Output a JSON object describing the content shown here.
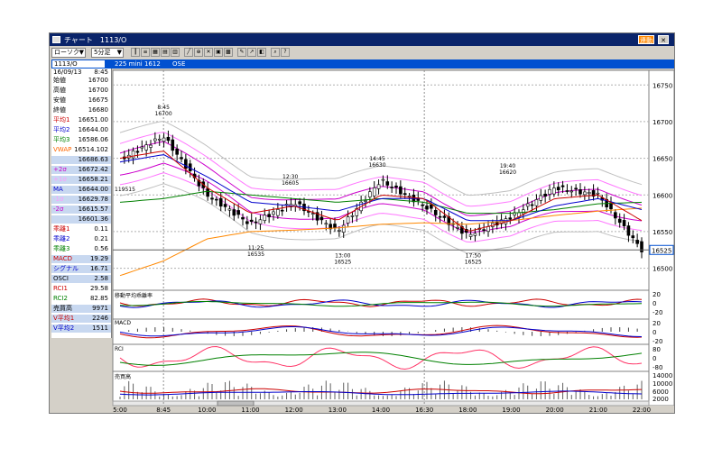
{
  "window": {
    "title": "チャート　1113/O",
    "badge": "連動",
    "symbol_code": "1113/O",
    "instrument": "225 mini 1612",
    "exchange": "OSE"
  },
  "toolbar": {
    "chart_type": "ローソク",
    "interval": "5分足"
  },
  "panel": {
    "date": "16/09/13",
    "time": "8:45",
    "rows": [
      {
        "label": "始値",
        "value": "16700",
        "color": "#000000",
        "bg": "white"
      },
      {
        "label": "高値",
        "value": "16700",
        "color": "#000000",
        "bg": "white"
      },
      {
        "label": "安値",
        "value": "16675",
        "color": "#000000",
        "bg": "white"
      },
      {
        "label": "終値",
        "value": "16680",
        "color": "#000000",
        "bg": "white"
      },
      {
        "label": "平均1",
        "value": "16651.00",
        "color": "#cc0000",
        "bg": "white"
      },
      {
        "label": "平均2",
        "value": "16644.00",
        "color": "#0000cc",
        "bg": "white"
      },
      {
        "label": "平均3",
        "value": "16586.06",
        "color": "#008000",
        "bg": "white"
      },
      {
        "label": "VWAP",
        "value": "16514.102",
        "color": "#ff6600",
        "bg": "white"
      },
      {
        "label": "",
        "value": "16686.63",
        "color": "#000000",
        "bg": "blue"
      },
      {
        "label": "+2σ",
        "value": "16672.42",
        "color": "#cc00cc",
        "bg": "blue"
      },
      {
        "label": "+1σ",
        "value": "16658.21",
        "color": "#ff99ff",
        "bg": "blue"
      },
      {
        "label": "MA",
        "value": "16644.00",
        "color": "#0000cc",
        "bg": "blue"
      },
      {
        "label": "-1σ",
        "value": "16629.78",
        "color": "#ff99ff",
        "bg": "blue"
      },
      {
        "label": "-2σ",
        "value": "16615.57",
        "color": "#cc00cc",
        "bg": "blue"
      },
      {
        "label": "",
        "value": "16601.36",
        "color": "#000000",
        "bg": "blue"
      },
      {
        "label": "乖離1",
        "value": "0.11",
        "color": "#cc0000",
        "bg": "white"
      },
      {
        "label": "乖離2",
        "value": "0.21",
        "color": "#0000cc",
        "bg": "white"
      },
      {
        "label": "乖離3",
        "value": "0.56",
        "color": "#008000",
        "bg": "white"
      },
      {
        "label": "MACD",
        "value": "19.29",
        "color": "#cc0000",
        "bg": "blue"
      },
      {
        "label": "シグナル",
        "value": "16.71",
        "color": "#0000cc",
        "bg": "blue"
      },
      {
        "label": "OSCI",
        "value": "2.58",
        "color": "#000000",
        "bg": "blue"
      },
      {
        "label": "RCI1",
        "value": "29.58",
        "color": "#cc0000",
        "bg": "white"
      },
      {
        "label": "RCI2",
        "value": "82.85",
        "color": "#008000",
        "bg": "white"
      },
      {
        "label": "売買高",
        "value": "9971",
        "color": "#000000",
        "bg": "blue"
      },
      {
        "label": "V平均1",
        "value": "2246",
        "color": "#cc0000",
        "bg": "blue"
      },
      {
        "label": "V平均2",
        "value": "1511",
        "color": "#0000cc",
        "bg": "blue"
      }
    ]
  },
  "price_axis": {
    "ticks": [
      "16750",
      "16700",
      "16650",
      "16600",
      "16550",
      "16500"
    ],
    "current": "16525"
  },
  "annotations": [
    {
      "time": "8:45",
      "price": "16700"
    },
    {
      "time": "11:25",
      "price": "16535"
    },
    {
      "time": "12:30",
      "price": "16605"
    },
    {
      "time": "13:00",
      "price": "16525"
    },
    {
      "time": "14:45",
      "price": "16630"
    },
    {
      "time": "17:50",
      "price": "16525"
    },
    {
      "time": "19:40",
      "price": "16620"
    }
  ],
  "bb_label": "119515",
  "subpanels": {
    "deviation": {
      "title": "移動平均乖離率",
      "ticks": [
        "20",
        "0",
        "-20"
      ]
    },
    "macd": {
      "title": "MACD",
      "ticks": [
        "20",
        "0",
        "-20"
      ]
    },
    "rci": {
      "title": "RCI",
      "ticks": [
        "80",
        "0",
        "-80"
      ]
    },
    "volume": {
      "title": "売買高",
      "ticks": [
        "14000",
        "10000",
        "6000",
        "2000"
      ]
    }
  },
  "time_axis": [
    "5:00",
    "8:45",
    "10:00",
    "11:00",
    "12:00",
    "13:00",
    "14:00",
    "16:30",
    "18:00",
    "19:00",
    "20:00",
    "21:00",
    "22:00"
  ],
  "chart_data": {
    "type": "candlestick",
    "ylim": [
      16470,
      16770
    ],
    "x": [
      "5:00",
      "8:45",
      "10:00",
      "11:00",
      "12:00",
      "13:00",
      "14:00",
      "16:30",
      "18:00",
      "19:00",
      "20:00",
      "21:00",
      "22:00"
    ],
    "close": [
      16648,
      16680,
      16600,
      16560,
      16590,
      16550,
      16620,
      16585,
      16545,
      16570,
      16610,
      16600,
      16525
    ],
    "ma1": [
      16650,
      16660,
      16610,
      16575,
      16585,
      16565,
      16600,
      16595,
      16550,
      16565,
      16595,
      16600,
      16565
    ],
    "ma2": [
      16645,
      16655,
      16625,
      16590,
      16585,
      16578,
      16595,
      16595,
      16565,
      16565,
      16585,
      16595,
      16580
    ],
    "ma3": [
      16590,
      16595,
      16605,
      16600,
      16595,
      16590,
      16595,
      16590,
      16575,
      16575,
      16580,
      16588,
      16590
    ],
    "vwap": [
      16490,
      16510,
      16540,
      16550,
      16552,
      16555,
      16560,
      16562,
      16560,
      16565,
      16572,
      16578,
      16582
    ]
  },
  "colors": {
    "title_bg": "#0a246a",
    "info_bg": "#0050d0",
    "candle": "#000000",
    "ma1": "#cc0000",
    "ma2": "#0000cc",
    "ma3": "#008000",
    "vwap": "#ff8800",
    "bb": "#cc00cc",
    "bb_outer": "#c0c0c0"
  }
}
